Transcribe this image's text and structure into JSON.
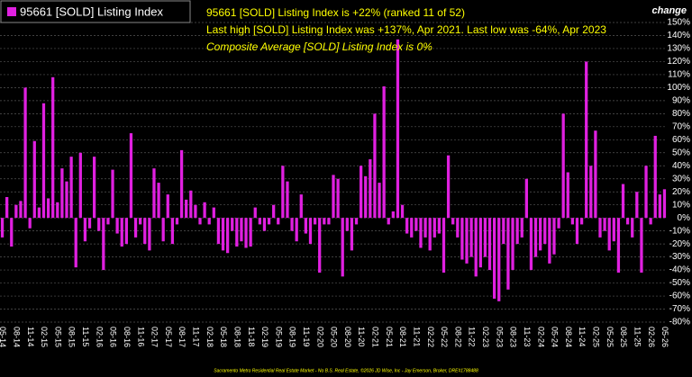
{
  "chart_data": {
    "type": "bar",
    "title": "95661 [SOLD] Listing Index",
    "annotations": [
      "95661 [SOLD] Listing Index is +22% (ranked 11 of 52)",
      "Last high [SOLD] Listing Index was +137%, Apr 2021. Last low was -64%, Apr 2023",
      "Composite Average [SOLD] Listing Index is 0%"
    ],
    "y_axis_label": "change",
    "footer": "Sacramento Metro Residential Real Estate Market - No B.S. Real Estate, ©2026 JD Wise, Inc - Jay Emerson, Broker, DRE#1788488",
    "color": "#e020e0",
    "grid": true,
    "categories": [
      "05-14",
      null,
      null,
      "08-14",
      null,
      null,
      "11-14",
      null,
      null,
      "02-15",
      null,
      null,
      "05-15",
      null,
      null,
      "08-15",
      null,
      null,
      "11-15",
      null,
      null,
      "02-16",
      null,
      null,
      "05-16",
      null,
      null,
      "08-16",
      null,
      null,
      "11-16",
      null,
      null,
      "02-17",
      null,
      null,
      "05-17",
      null,
      null,
      "08-17",
      null,
      null,
      "11-17",
      null,
      null,
      "02-18",
      null,
      null,
      "05-18",
      null,
      null,
      "08-18",
      null,
      null,
      "11-18",
      null,
      null,
      "02-19",
      null,
      null,
      "05-19",
      null,
      null,
      "08-19",
      null,
      null,
      "11-19",
      null,
      null,
      "02-20",
      null,
      null,
      "05-20",
      null,
      null,
      "08-20",
      null,
      null,
      "11-20",
      null,
      null,
      "02-21",
      null,
      null,
      "05-21",
      null,
      null,
      "08-21",
      null,
      null,
      "11-21",
      null,
      null,
      "02-22",
      null,
      null,
      "05-22",
      null,
      null,
      "08-22",
      null,
      null,
      "11-22",
      null,
      null,
      "02-23",
      null,
      null,
      "05-23",
      null,
      null,
      "08-23",
      null,
      null,
      "11-23",
      null,
      null,
      "02-24",
      null,
      null,
      "05-24",
      null,
      null,
      "08-24",
      null,
      null,
      "11-24",
      null,
      null,
      "02-25",
      null,
      null,
      "05-25",
      null,
      null,
      "08-25",
      null,
      null,
      "11-25",
      null,
      null,
      "02-26",
      null,
      null,
      "05-26"
    ],
    "values": [
      -15,
      16,
      -22,
      10,
      13,
      100,
      -8,
      59,
      8,
      88,
      15,
      108,
      12,
      38,
      28,
      47,
      -38,
      50,
      -18,
      -8,
      47,
      -10,
      -40,
      -5,
      37,
      -12,
      -22,
      -20,
      65,
      -15,
      -5,
      -20,
      -25,
      38,
      27,
      -18,
      18,
      -20,
      -5,
      52,
      14,
      21,
      10,
      -5,
      12,
      -5,
      8,
      -20,
      -25,
      -27,
      -10,
      -22,
      -18,
      -23,
      -22,
      8,
      -5,
      -10,
      -5,
      10,
      -5,
      40,
      28,
      -10,
      -18,
      18,
      -12,
      -20,
      -5,
      -42,
      -5,
      -5,
      33,
      30,
      -45,
      -10,
      -25,
      -5,
      40,
      32,
      45,
      80,
      27,
      101,
      -5,
      5,
      137,
      10,
      -12,
      -15,
      -10,
      -23,
      -15,
      -25,
      -15,
      -12,
      -42,
      48,
      -5,
      -15,
      -32,
      -35,
      -30,
      -45,
      -38,
      -30,
      -40,
      -62,
      -64,
      -20,
      -55,
      -40,
      -20,
      -15,
      30,
      -40,
      -30,
      -25,
      -20,
      -35,
      -28,
      -8,
      80,
      35,
      -5,
      -20,
      -5,
      120,
      40,
      67,
      -15,
      -10,
      -25,
      -18,
      -42,
      26,
      -5,
      -15,
      20,
      -42,
      40,
      -5,
      63,
      18,
      22
    ],
    "ylim": [
      -80,
      150
    ],
    "yticks": [
      {
        "value": 150,
        "label": "150%"
      },
      {
        "value": 140,
        "label": "140%"
      },
      {
        "value": 130,
        "label": "130%"
      },
      {
        "value": 120,
        "label": "120%"
      },
      {
        "value": 110,
        "label": "110%"
      },
      {
        "value": 100,
        "label": "100%"
      },
      {
        "value": 90,
        "label": "90%"
      },
      {
        "value": 80,
        "label": "80%"
      },
      {
        "value": 70,
        "label": "70%"
      },
      {
        "value": 60,
        "label": "60%"
      },
      {
        "value": 50,
        "label": "50%"
      },
      {
        "value": 40,
        "label": "40%"
      },
      {
        "value": 30,
        "label": "30%"
      },
      {
        "value": 20,
        "label": "20%"
      },
      {
        "value": 10,
        "label": "10%"
      },
      {
        "value": 0,
        "label": "0%"
      },
      {
        "value": -10,
        "label": "-10%"
      },
      {
        "value": -20,
        "label": "-20%"
      },
      {
        "value": -30,
        "label": "-30%"
      },
      {
        "value": -40,
        "label": "-40%"
      },
      {
        "value": -50,
        "label": "-50%"
      },
      {
        "value": -60,
        "label": "-60%"
      },
      {
        "value": -70,
        "label": "-70%"
      },
      {
        "value": -80,
        "label": "-80%"
      }
    ]
  }
}
